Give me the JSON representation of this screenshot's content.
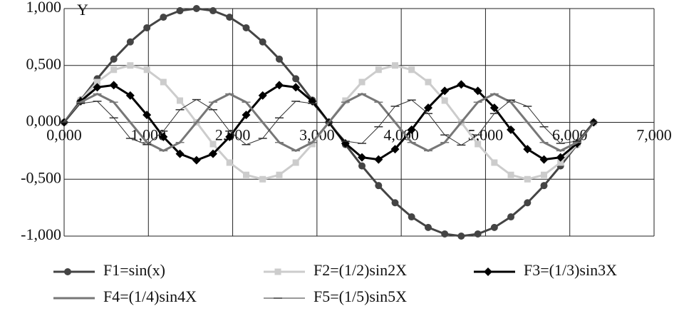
{
  "chart_data": {
    "type": "line",
    "y_label": "Y",
    "x": [
      0,
      0.196,
      0.393,
      0.589,
      0.785,
      0.982,
      1.178,
      1.374,
      1.571,
      1.767,
      1.963,
      2.16,
      2.356,
      2.553,
      2.749,
      2.945,
      3.142,
      3.338,
      3.534,
      3.731,
      3.927,
      4.123,
      4.32,
      4.516,
      4.712,
      4.909,
      5.105,
      5.301,
      5.498,
      5.694,
      5.89,
      6.087,
      6.283
    ],
    "series": [
      {
        "name": "F1=sin(x)",
        "color": "#444444",
        "marker": "circle",
        "width": 3,
        "values": [
          0,
          0.195,
          0.383,
          0.556,
          0.707,
          0.831,
          0.924,
          0.981,
          1,
          0.981,
          0.924,
          0.831,
          0.707,
          0.556,
          0.383,
          0.195,
          0,
          -0.195,
          -0.383,
          -0.556,
          -0.707,
          -0.831,
          -0.924,
          -0.981,
          -1,
          -0.981,
          -0.924,
          -0.831,
          -0.707,
          -0.556,
          -0.383,
          -0.195,
          0
        ]
      },
      {
        "name": "F2=(1/2)sin2X",
        "color": "#cccccc",
        "marker": "square",
        "width": 3,
        "values": [
          0,
          0.191,
          0.354,
          0.462,
          0.5,
          0.462,
          0.354,
          0.191,
          0,
          -0.191,
          -0.354,
          -0.462,
          -0.5,
          -0.462,
          -0.354,
          -0.191,
          0,
          0.191,
          0.354,
          0.462,
          0.5,
          0.462,
          0.354,
          0.191,
          0,
          -0.191,
          -0.354,
          -0.462,
          -0.5,
          -0.462,
          -0.354,
          -0.191,
          0
        ]
      },
      {
        "name": "F3=(1/3)sin3X",
        "color": "#000000",
        "marker": "diamond",
        "width": 3,
        "values": [
          0,
          0.185,
          0.308,
          0.327,
          0.236,
          0.065,
          -0.128,
          -0.277,
          -0.333,
          -0.277,
          -0.128,
          0.065,
          0.236,
          0.327,
          0.308,
          0.185,
          0,
          -0.185,
          -0.308,
          -0.327,
          -0.236,
          -0.065,
          0.128,
          0.277,
          0.333,
          0.277,
          0.128,
          -0.065,
          -0.236,
          -0.327,
          -0.308,
          -0.185,
          0
        ]
      },
      {
        "name": "F4=(1/4)sin4X",
        "color": "#777777",
        "marker": "dash",
        "width": 3,
        "values": [
          0,
          0.177,
          0.25,
          0.177,
          0,
          -0.177,
          -0.25,
          -0.177,
          0,
          0.177,
          0.25,
          0.177,
          0,
          -0.177,
          -0.25,
          -0.177,
          0,
          0.177,
          0.25,
          0.177,
          0,
          -0.177,
          -0.25,
          -0.177,
          0,
          0.177,
          0.25,
          0.177,
          0,
          -0.177,
          -0.25,
          -0.177,
          0
        ]
      },
      {
        "name": "F5=(1/5)sin5X",
        "color": "#333333",
        "marker": "dash",
        "width": 1,
        "values": [
          0,
          0.166,
          0.185,
          0.039,
          -0.141,
          -0.196,
          -0.077,
          0.111,
          0.2,
          0.111,
          -0.077,
          -0.196,
          -0.141,
          0.039,
          0.185,
          0.166,
          0,
          -0.166,
          -0.185,
          -0.039,
          0.141,
          0.196,
          0.077,
          -0.111,
          -0.2,
          -0.111,
          0.077,
          0.196,
          0.141,
          -0.039,
          -0.185,
          -0.166,
          0
        ]
      }
    ],
    "xlim": [
      0,
      7
    ],
    "ylim": [
      -1,
      1
    ],
    "xticks": [
      {
        "value": 0,
        "label": "0,000"
      },
      {
        "value": 1,
        "label": "1,000"
      },
      {
        "value": 2,
        "label": "2,000"
      },
      {
        "value": 3,
        "label": "3,000"
      },
      {
        "value": 4,
        "label": "4,000"
      },
      {
        "value": 5,
        "label": "5,000"
      },
      {
        "value": 6,
        "label": "6,000"
      },
      {
        "value": 7,
        "label": "7,000"
      }
    ],
    "yticks": [
      {
        "value": -1,
        "label": "-1,000"
      },
      {
        "value": -0.5,
        "label": "-0,500"
      },
      {
        "value": 0,
        "label": "0,000"
      },
      {
        "value": 0.5,
        "label": "0,500"
      },
      {
        "value": 1,
        "label": "1,000"
      }
    ],
    "grid": true
  }
}
